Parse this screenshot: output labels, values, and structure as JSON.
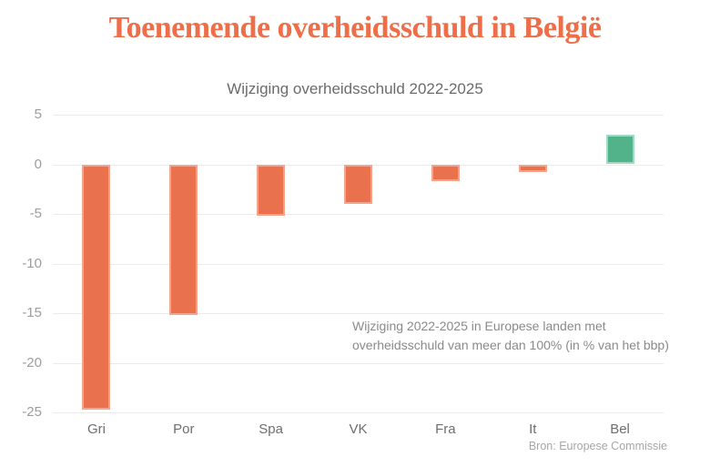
{
  "page": {
    "title": "Toenemende overheidsschuld in België",
    "source": "Bron: Europese Commissie"
  },
  "chart_data": {
    "type": "bar",
    "title": "Wijziging overheidsschuld 2022-2025",
    "categories": [
      "Gri",
      "Por",
      "Spa",
      "VK",
      "Fra",
      "It",
      "Bel"
    ],
    "values": [
      -24.7,
      -15.2,
      -5.2,
      -4,
      -1.7,
      -0.8,
      3
    ],
    "xlabel": "",
    "ylabel": "",
    "ylim": [
      -25,
      5
    ],
    "yticks": [
      5,
      0,
      -5,
      -10,
      -15,
      -20,
      -25
    ],
    "grid": true,
    "legend": false,
    "annotation": [
      "Wijziging 2022-2025 in Europese landen met",
      "overheidsschuld van meer dan 100% (in % van het bbp)"
    ],
    "bar_colors": {
      "negative": "#E9714E",
      "negative_edge": "#F2A68E",
      "positive": "#52B28A",
      "positive_edge": "#A3D8C2"
    },
    "highlight_category": "Bel"
  },
  "colors": {
    "title": "#ED6E48",
    "subtitle": "#6B6B6B",
    "tick_label": "#9C9C9C",
    "x_label": "#6E6E6E",
    "annotation": "#8A8A8A",
    "source": "#A6A6A6",
    "gridline": "#EBEBEB"
  }
}
